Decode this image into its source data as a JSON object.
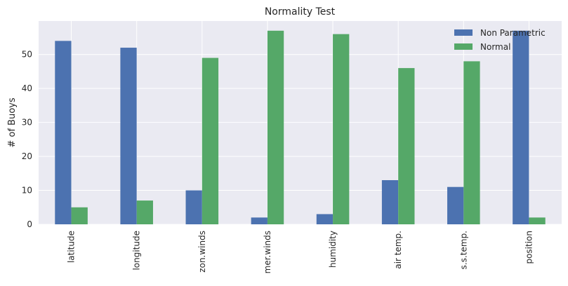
{
  "chart_data": {
    "type": "bar",
    "title": "Normality Test",
    "xlabel": "",
    "ylabel": "# of Buoys",
    "categories": [
      "latitude",
      "longitude",
      "zon.winds",
      "mer.winds",
      "humidity",
      "air temp.",
      "s.s.temp.",
      "position"
    ],
    "series": [
      {
        "name": "Non Parametric",
        "color": "#4c72b0",
        "values": [
          54,
          52,
          10,
          2,
          3,
          13,
          11,
          57
        ]
      },
      {
        "name": "Normal",
        "color": "#55a868",
        "values": [
          5,
          7,
          49,
          57,
          56,
          46,
          48,
          2
        ]
      }
    ],
    "ylim": [
      0,
      59.85
    ],
    "yticks": [
      0,
      10,
      20,
      30,
      40,
      50
    ],
    "grid": true,
    "legend_position": "top-right",
    "background": "#eaeaf2",
    "gridline_color": "#ffffff"
  }
}
